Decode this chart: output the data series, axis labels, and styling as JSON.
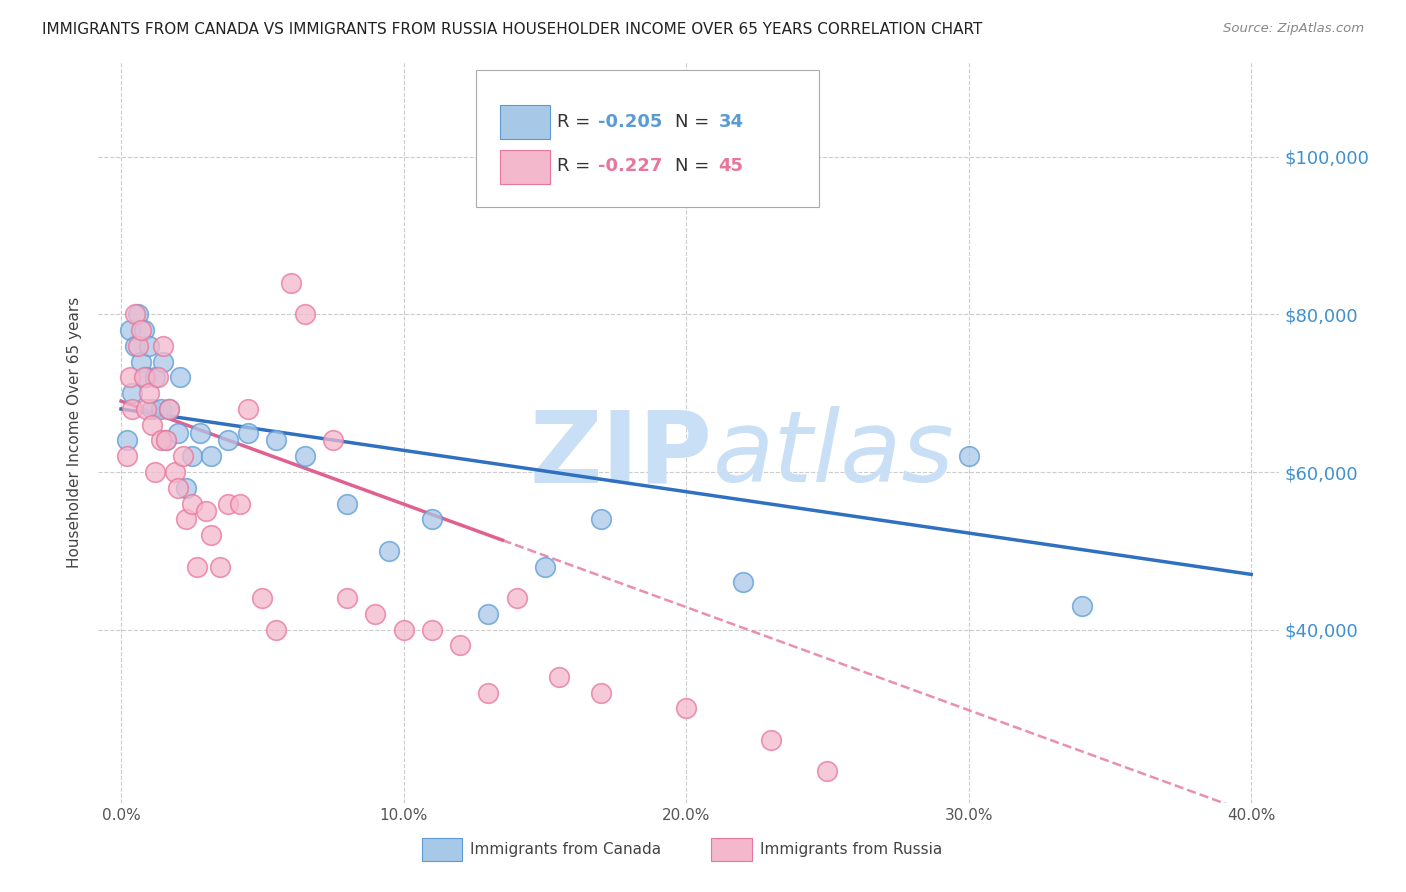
{
  "title": "IMMIGRANTS FROM CANADA VS IMMIGRANTS FROM RUSSIA HOUSEHOLDER INCOME OVER 65 YEARS CORRELATION CHART",
  "source": "Source: ZipAtlas.com",
  "ylabel": "Householder Income Over 65 years",
  "xlabel_vals": [
    0.0,
    10.0,
    20.0,
    30.0,
    40.0
  ],
  "ytick_vals": [
    40000,
    60000,
    80000,
    100000
  ],
  "ytick_labels": [
    "$40,000",
    "$60,000",
    "$80,000",
    "$100,000"
  ],
  "ylim": [
    18000,
    112000
  ],
  "xlim": [
    -0.8,
    41.0
  ],
  "canada_R": -0.205,
  "canada_N": 34,
  "russia_R": -0.227,
  "russia_N": 45,
  "canada_color": "#a8c8e8",
  "russia_color": "#f4b8cc",
  "canada_edge_color": "#5b9bd5",
  "russia_edge_color": "#e8759a",
  "canada_line_color": "#3070c0",
  "russia_line_color": "#e06090",
  "watermark_zip": "ZIP",
  "watermark_atlas": "atlas",
  "watermark_color": "#c8dff5",
  "background_color": "#ffffff",
  "grid_color": "#cccccc",
  "canada_x": [
    0.2,
    0.3,
    0.4,
    0.5,
    0.6,
    0.7,
    0.8,
    0.9,
    1.0,
    1.1,
    1.2,
    1.4,
    1.5,
    1.6,
    1.7,
    2.0,
    2.1,
    2.3,
    2.5,
    2.8,
    3.2,
    3.8,
    4.5,
    5.5,
    6.5,
    8.0,
    9.5,
    11.0,
    13.0,
    15.0,
    17.0,
    22.0,
    30.0,
    34.0
  ],
  "canada_y": [
    64000,
    78000,
    70000,
    76000,
    80000,
    74000,
    78000,
    72000,
    76000,
    68000,
    72000,
    68000,
    74000,
    64000,
    68000,
    65000,
    72000,
    58000,
    62000,
    65000,
    62000,
    64000,
    65000,
    64000,
    62000,
    56000,
    50000,
    54000,
    42000,
    48000,
    54000,
    46000,
    62000,
    43000
  ],
  "russia_x": [
    0.2,
    0.3,
    0.4,
    0.5,
    0.6,
    0.7,
    0.8,
    0.9,
    1.0,
    1.1,
    1.2,
    1.3,
    1.4,
    1.5,
    1.6,
    1.7,
    1.9,
    2.0,
    2.2,
    2.3,
    2.5,
    2.7,
    3.0,
    3.2,
    3.5,
    3.8,
    4.2,
    4.5,
    5.0,
    5.5,
    6.0,
    6.5,
    7.5,
    8.0,
    9.0,
    10.0,
    11.0,
    12.0,
    13.0,
    14.0,
    15.5,
    17.0,
    20.0,
    23.0,
    25.0
  ],
  "russia_y": [
    62000,
    72000,
    68000,
    80000,
    76000,
    78000,
    72000,
    68000,
    70000,
    66000,
    60000,
    72000,
    64000,
    76000,
    64000,
    68000,
    60000,
    58000,
    62000,
    54000,
    56000,
    48000,
    55000,
    52000,
    48000,
    56000,
    56000,
    68000,
    44000,
    40000,
    84000,
    80000,
    64000,
    44000,
    42000,
    40000,
    40000,
    38000,
    32000,
    44000,
    34000,
    32000,
    30000,
    26000,
    22000
  ],
  "russia_solid_end": 13.5,
  "russia_line_xmin": 0.0,
  "russia_line_xmax": 41.0,
  "canada_line_xmin": 0.0,
  "canada_line_xmax": 40.0
}
